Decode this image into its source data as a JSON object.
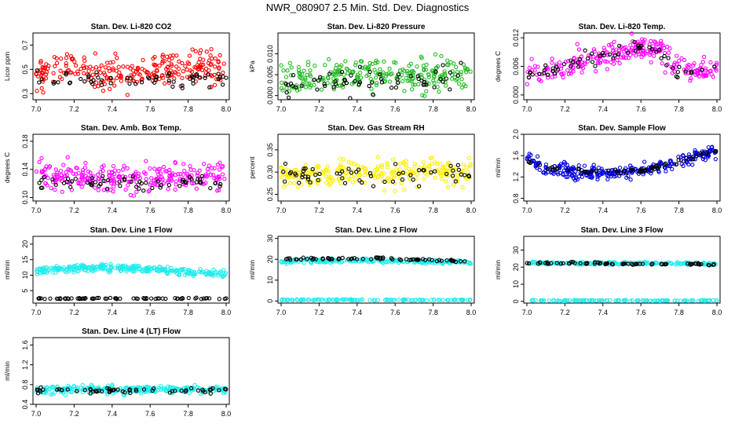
{
  "title": "NWR_080907  2.5 Min. Std. Dev. Diagnostics",
  "colors": {
    "red": "#ff0000",
    "green": "#22bb22",
    "magenta": "#ff00ff",
    "yellow": "#ffee00",
    "blue": "#0000dd",
    "cyan": "#22ecec",
    "black": "#000000"
  },
  "chart_data": [
    {
      "type": "scatter",
      "title": "Stan. Dev. Li-820 CO2",
      "ylabel": "Licor ppm",
      "xlim": [
        7.0,
        8.0
      ],
      "ylim": [
        0.25,
        0.8
      ],
      "xticks": [
        "7.0",
        "7.2",
        "7.4",
        "7.6",
        "7.8",
        "8.0"
      ],
      "yticks": [
        "0.3",
        "0.5",
        "0.7"
      ],
      "ytick_values": [
        0.3,
        0.5,
        0.7
      ],
      "series": [
        {
          "color": "red",
          "profile": [
            [
              7.0,
              0.45
            ],
            [
              7.15,
              0.55
            ],
            [
              7.3,
              0.48
            ],
            [
              7.5,
              0.45
            ],
            [
              7.7,
              0.5
            ],
            [
              7.9,
              0.52
            ],
            [
              8.0,
              0.45
            ]
          ],
          "spread": 0.12,
          "n": 260
        },
        {
          "color": "black",
          "profile": [
            [
              7.0,
              0.42
            ],
            [
              7.5,
              0.42
            ],
            [
              8.0,
              0.42
            ]
          ],
          "spread": 0.06,
          "n": 60
        }
      ]
    },
    {
      "type": "scatter",
      "title": "Stan. Dev. Li-820 Pressure",
      "ylabel": "kPa",
      "xlim": [
        7.0,
        8.0
      ],
      "ylim": [
        -0.001,
        0.015
      ],
      "xticks": [
        "7.0",
        "7.2",
        "7.4",
        "7.6",
        "7.8",
        "8.0"
      ],
      "yticks": [
        "0.000",
        "0.005",
        "0.010"
      ],
      "ytick_values": [
        0.0,
        0.005,
        0.01
      ],
      "series": [
        {
          "color": "green",
          "profile": [
            [
              7.0,
              0.004
            ],
            [
              7.5,
              0.005
            ],
            [
              8.0,
              0.005
            ]
          ],
          "spread": 0.004,
          "n": 260
        },
        {
          "color": "black",
          "profile": [
            [
              7.0,
              0.003
            ],
            [
              8.0,
              0.004
            ]
          ],
          "spread": 0.003,
          "n": 60
        }
      ]
    },
    {
      "type": "scatter",
      "title": "Stan. Dev. Li-820 Temp.",
      "ylabel": "degrees C",
      "xlim": [
        7.0,
        8.0
      ],
      "ylim": [
        -0.001,
        0.013
      ],
      "xticks": [
        "7.0",
        "7.2",
        "7.4",
        "7.6",
        "7.8",
        "8.0"
      ],
      "yticks": [
        "0.000",
        "0.006",
        "0.012"
      ],
      "ytick_values": [
        0.0,
        0.006,
        0.012
      ],
      "series": [
        {
          "color": "magenta",
          "profile": [
            [
              7.0,
              0.004
            ],
            [
              7.2,
              0.006
            ],
            [
              7.4,
              0.008
            ],
            [
              7.6,
              0.01
            ],
            [
              7.7,
              0.009
            ],
            [
              7.8,
              0.006
            ],
            [
              8.0,
              0.005
            ]
          ],
          "spread": 0.0025,
          "n": 260
        },
        {
          "color": "black",
          "profile": [
            [
              7.0,
              0.004
            ],
            [
              7.2,
              0.006
            ],
            [
              7.4,
              0.008
            ],
            [
              7.6,
              0.01
            ],
            [
              7.7,
              0.009
            ],
            [
              7.8,
              0.005
            ],
            [
              8.0,
              0.005
            ]
          ],
          "spread": 0.0015,
          "n": 60
        }
      ]
    },
    {
      "type": "scatter",
      "title": "Stan. Dev. Amb. Box Temp.",
      "ylabel": "degrees C",
      "xlim": [
        7.0,
        8.0
      ],
      "ylim": [
        0.095,
        0.19
      ],
      "xticks": [
        "7.0",
        "7.2",
        "7.4",
        "7.6",
        "7.8",
        "8.0"
      ],
      "yticks": [
        "0.10",
        "0.14",
        "0.18"
      ],
      "ytick_values": [
        0.1,
        0.14,
        0.18
      ],
      "series": [
        {
          "color": "magenta",
          "profile": [
            [
              7.0,
              0.13
            ],
            [
              7.5,
              0.128
            ],
            [
              8.0,
              0.13
            ]
          ],
          "spread": 0.02,
          "n": 260
        },
        {
          "color": "black",
          "profile": [
            [
              7.0,
              0.122
            ],
            [
              8.0,
              0.122
            ]
          ],
          "spread": 0.01,
          "n": 60
        }
      ]
    },
    {
      "type": "scatter",
      "title": "Stan. Dev. Gas Stream RH",
      "ylabel": "percent",
      "xlim": [
        7.0,
        8.0
      ],
      "ylim": [
        0.235,
        0.385
      ],
      "xticks": [
        "7.0",
        "7.2",
        "7.4",
        "7.6",
        "7.8",
        "8.0"
      ],
      "yticks": [
        "0.25",
        "0.30",
        "0.35"
      ],
      "ytick_values": [
        0.25,
        0.3,
        0.35
      ],
      "series": [
        {
          "color": "yellow",
          "profile": [
            [
              7.0,
              0.29
            ],
            [
              7.5,
              0.3
            ],
            [
              8.0,
              0.3
            ]
          ],
          "spread": 0.03,
          "n": 260
        },
        {
          "color": "black",
          "profile": [
            [
              7.0,
              0.29
            ],
            [
              8.0,
              0.3
            ]
          ],
          "spread": 0.025,
          "n": 60
        }
      ]
    },
    {
      "type": "scatter",
      "title": "Stan. Dev. Sample Flow",
      "ylabel": "ml/min",
      "xlim": [
        7.0,
        8.0
      ],
      "ylim": [
        0.75,
        2.0
      ],
      "xticks": [
        "7.0",
        "7.2",
        "7.4",
        "7.6",
        "7.8",
        "8.0"
      ],
      "yticks": [
        "0.8",
        "1.2",
        "1.6",
        "2.0"
      ],
      "ytick_values": [
        0.8,
        1.2,
        1.6,
        2.0
      ],
      "series": [
        {
          "color": "blue",
          "profile": [
            [
              7.0,
              1.55
            ],
            [
              7.1,
              1.35
            ],
            [
              7.3,
              1.28
            ],
            [
              7.5,
              1.3
            ],
            [
              7.6,
              1.3
            ],
            [
              7.7,
              1.4
            ],
            [
              7.85,
              1.55
            ],
            [
              8.0,
              1.7
            ]
          ],
          "spread": 0.12,
          "n": 280
        },
        {
          "color": "black",
          "profile": [
            [
              7.0,
              1.5
            ],
            [
              7.1,
              1.35
            ],
            [
              7.3,
              1.3
            ],
            [
              7.6,
              1.3
            ],
            [
              7.8,
              1.5
            ],
            [
              8.0,
              1.7
            ]
          ],
          "spread": 0.05,
          "n": 60
        }
      ]
    },
    {
      "type": "scatter",
      "title": "Stan. Dev. Line 1 Flow",
      "ylabel": "ml/min",
      "xlim": [
        7.0,
        8.0
      ],
      "ylim": [
        1,
        22.5
      ],
      "xticks": [
        "7.0",
        "7.2",
        "7.4",
        "7.6",
        "7.8",
        "8.0"
      ],
      "yticks": [
        "5",
        "10",
        "15",
        "20"
      ],
      "ytick_values": [
        5,
        10,
        15,
        20
      ],
      "series": [
        {
          "color": "cyan",
          "profile": [
            [
              7.0,
              11.5
            ],
            [
              7.3,
              12.5
            ],
            [
              7.6,
              12
            ],
            [
              7.8,
              11
            ],
            [
              8.0,
              10.5
            ]
          ],
          "spread": 1.2,
          "n": 280
        },
        {
          "color": "black",
          "profile": [
            [
              7.0,
              2.5
            ],
            [
              8.0,
              2.5
            ]
          ],
          "spread": 0.2,
          "n": 70
        }
      ]
    },
    {
      "type": "scatter",
      "title": "Stan. Dev. Line 2 Flow",
      "ylabel": "ml/min",
      "xlim": [
        7.0,
        8.0
      ],
      "ylim": [
        -1,
        31
      ],
      "xticks": [
        "7.0",
        "7.2",
        "7.4",
        "7.6",
        "7.8",
        "8.0"
      ],
      "yticks": [
        "0",
        "10",
        "20",
        "30"
      ],
      "ytick_values": [
        0,
        10,
        20,
        30
      ],
      "series": [
        {
          "color": "cyan",
          "profile": [
            [
              7.0,
              19
            ],
            [
              7.5,
              19.5
            ],
            [
              8.0,
              18.5
            ]
          ],
          "spread": 1.0,
          "n": 220
        },
        {
          "color": "cyan",
          "profile": [
            [
              7.0,
              0.5
            ],
            [
              8.0,
              0.5
            ]
          ],
          "spread": 0.3,
          "n": 120
        },
        {
          "color": "black",
          "profile": [
            [
              7.0,
              20
            ],
            [
              7.5,
              20.5
            ],
            [
              8.0,
              19
            ]
          ],
          "spread": 0.5,
          "n": 70
        }
      ]
    },
    {
      "type": "scatter",
      "title": "Stan. Dev. Line 3 Flow",
      "ylabel": "ml/min",
      "xlim": [
        7.0,
        8.0
      ],
      "ylim": [
        -1,
        38
      ],
      "xticks": [
        "7.0",
        "7.2",
        "7.4",
        "7.6",
        "7.8",
        "8.0"
      ],
      "yticks": [
        "0",
        "10",
        "20",
        "30"
      ],
      "ytick_values": [
        0,
        10,
        20,
        30
      ],
      "series": [
        {
          "color": "cyan",
          "profile": [
            [
              7.0,
              22.5
            ],
            [
              8.0,
              22
            ]
          ],
          "spread": 0.8,
          "n": 200
        },
        {
          "color": "cyan",
          "profile": [
            [
              7.0,
              0.5
            ],
            [
              8.0,
              0.5
            ]
          ],
          "spread": 0.3,
          "n": 120
        },
        {
          "color": "black",
          "profile": [
            [
              7.0,
              22.5
            ],
            [
              8.0,
              21.5
            ]
          ],
          "spread": 0.6,
          "n": 70
        }
      ]
    },
    {
      "type": "scatter",
      "title": "Stan. Dev. Line 4 (LT) Flow",
      "ylabel": "ml/min",
      "xlim": [
        7.0,
        8.0
      ],
      "ylim": [
        0.4,
        1.75
      ],
      "xticks": [
        "7.0",
        "7.2",
        "7.4",
        "7.6",
        "7.8",
        "8.0"
      ],
      "yticks": [
        "0.4",
        "0.8",
        "1.2",
        "1.6"
      ],
      "ytick_values": [
        0.4,
        0.8,
        1.2,
        1.6
      ],
      "series": [
        {
          "color": "cyan",
          "profile": [
            [
              7.0,
              0.7
            ],
            [
              8.0,
              0.7
            ]
          ],
          "spread": 0.08,
          "n": 260
        },
        {
          "color": "black",
          "profile": [
            [
              7.0,
              0.68
            ],
            [
              8.0,
              0.68
            ]
          ],
          "spread": 0.06,
          "n": 60
        }
      ]
    }
  ]
}
